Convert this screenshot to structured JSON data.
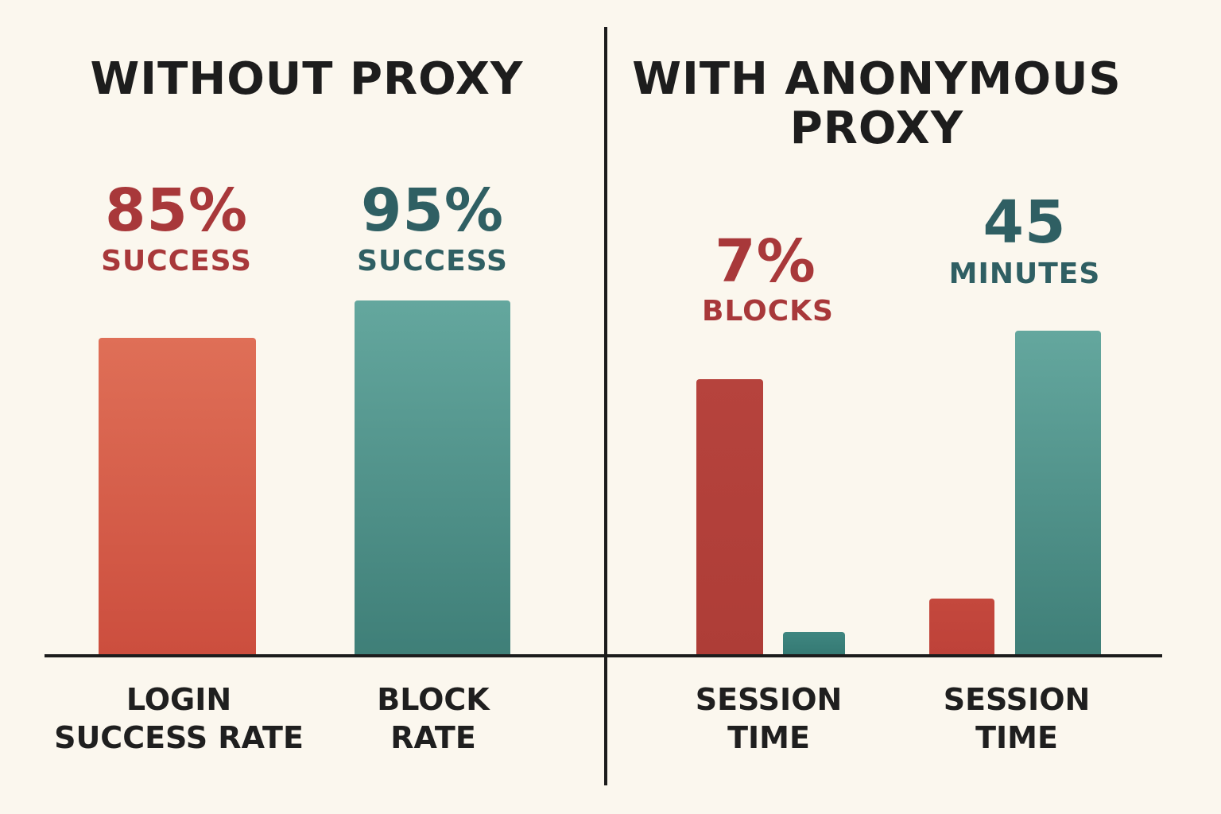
{
  "colors": {
    "background": "#fbf7ee",
    "red": "#cf5540",
    "red_dark": "#b03e38",
    "teal": "#4f918a",
    "teal_dark": "#2f5f63",
    "text": "#1d1d1d"
  },
  "left_panel": {
    "title": "WITHOUT PROXY",
    "metrics": [
      {
        "value": "85%",
        "caption": "SUCCESS"
      },
      {
        "value": "95%",
        "caption": "SUCCESS"
      }
    ],
    "categories": [
      {
        "line1": "LOGIN",
        "line2": "SUCCESS RATE"
      },
      {
        "line1": "BLOCK",
        "line2": "RATE"
      }
    ]
  },
  "right_panel": {
    "title_line1": "WITH ANONYMOUS",
    "title_line2": "PROXY",
    "metrics": [
      {
        "value": "7%",
        "caption": "BLOCKS"
      },
      {
        "value": "45",
        "caption": "MINUTES"
      }
    ],
    "categories": [
      {
        "line1": "SESSION",
        "line2": "TIME"
      },
      {
        "line1": "SESSION",
        "line2": "TIME"
      }
    ]
  },
  "chart_data": [
    {
      "type": "bar",
      "title": "WITHOUT PROXY",
      "categories": [
        "LOGIN SUCCESS RATE",
        "BLOCK RATE"
      ],
      "values": [
        85,
        95
      ],
      "value_labels": [
        "85% SUCCESS",
        "95% SUCCESS"
      ],
      "colors": [
        "#cf5540",
        "#4f918a"
      ],
      "ylim": [
        0,
        100
      ],
      "grid": false
    },
    {
      "type": "bar",
      "title": "WITH ANONYMOUS PROXY",
      "categories": [
        "SESSION TIME",
        "SESSION TIME"
      ],
      "series": [
        {
          "values": [
            74,
            15
          ],
          "color": "#b03e38"
        },
        {
          "values": [
            6,
            87
          ],
          "color": "#4f918a"
        }
      ],
      "value_labels": [
        "7% BLOCKS",
        "45 MINUTES"
      ],
      "ylim": [
        0,
        100
      ],
      "grid": false
    }
  ]
}
